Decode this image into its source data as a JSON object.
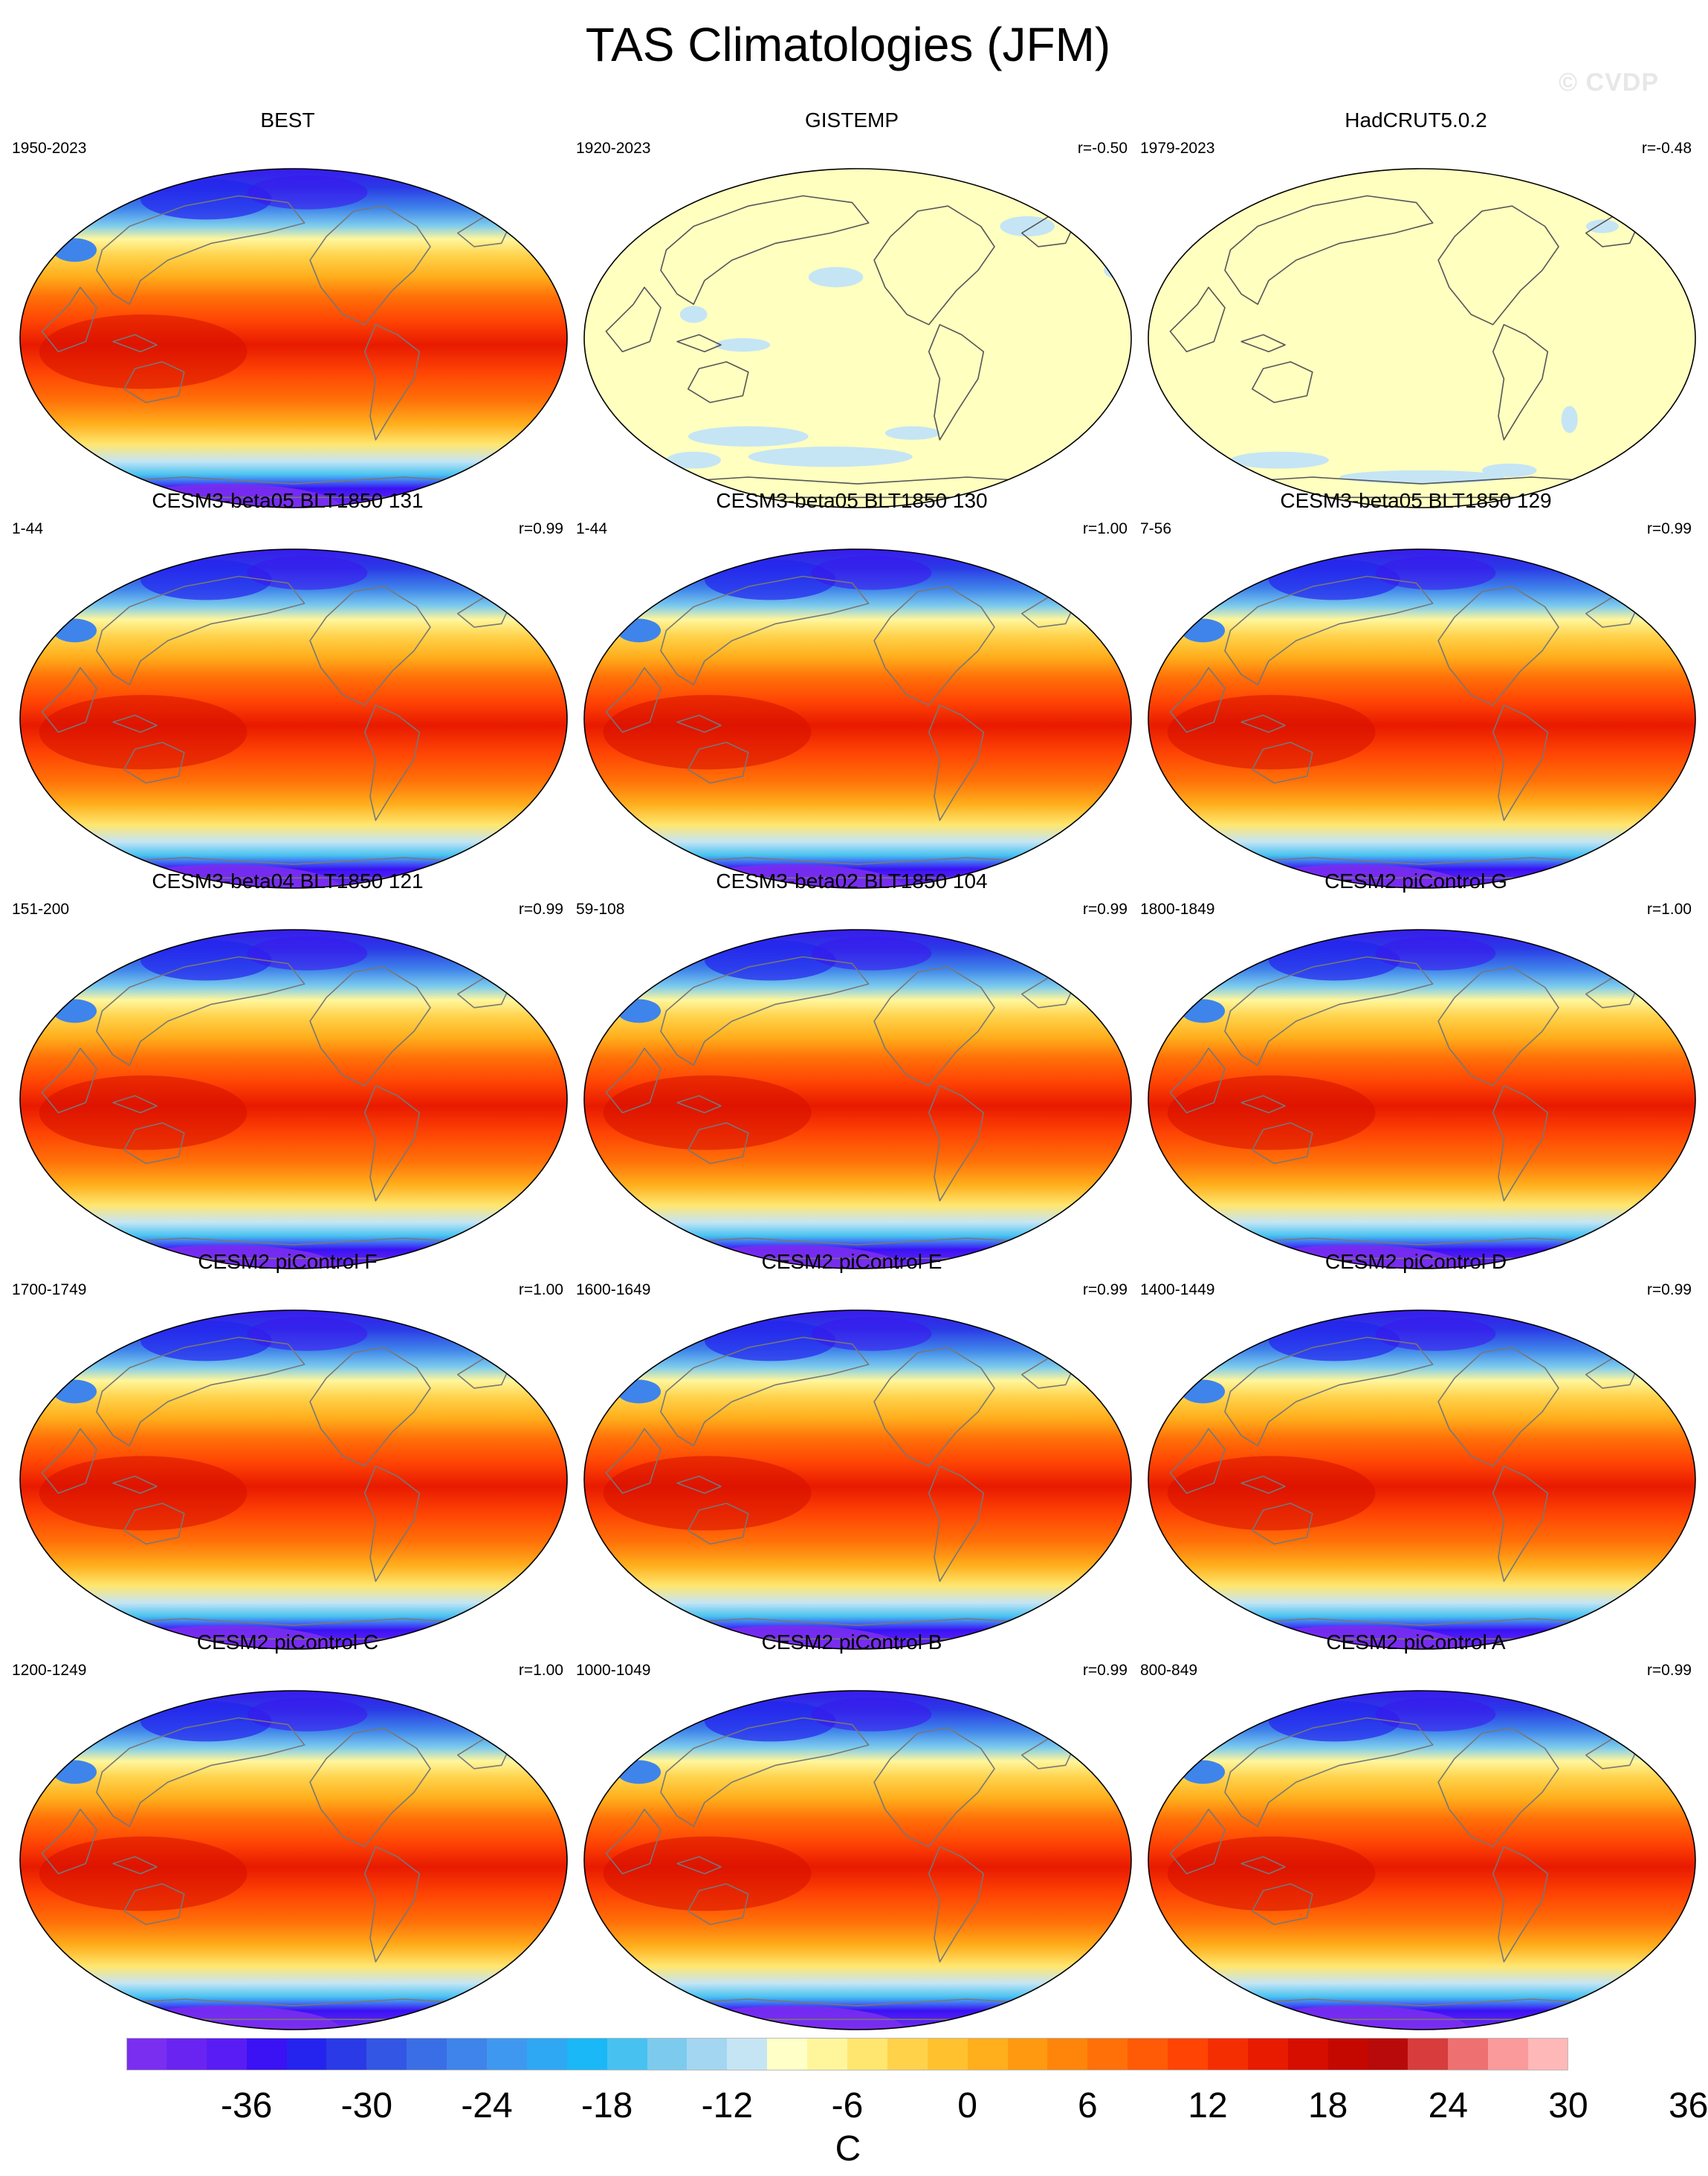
{
  "title": "TAS Climatologies (JFM)",
  "watermark": "© CVDP",
  "panels": [
    {
      "name": "BEST",
      "years": "1950-2023",
      "r": "",
      "style": "obs"
    },
    {
      "name": "GISTEMP",
      "years": "1920-2023",
      "r": "r=-0.50",
      "style": "diff"
    },
    {
      "name": "HadCRUT5.0.2",
      "years": "1979-2023",
      "r": "r=-0.48",
      "style": "diff"
    },
    {
      "name": "CESM3-beta05 BLT1850 131",
      "years": "1-44",
      "r": "r=0.99",
      "style": "model"
    },
    {
      "name": "CESM3-beta05 BLT1850 130",
      "years": "1-44",
      "r": "r=1.00",
      "style": "model"
    },
    {
      "name": "CESM3-beta05 BLT1850 129",
      "years": "7-56",
      "r": "r=0.99",
      "style": "model"
    },
    {
      "name": "CESM3-beta04 BLT1850 121",
      "years": "151-200",
      "r": "r=0.99",
      "style": "model"
    },
    {
      "name": "CESM3-beta02 BLT1850 104",
      "years": "59-108",
      "r": "r=0.99",
      "style": "model"
    },
    {
      "name": "CESM2 piControl G",
      "years": "1800-1849",
      "r": "r=1.00",
      "style": "model"
    },
    {
      "name": "CESM2 piControl F",
      "years": "1700-1749",
      "r": "r=1.00",
      "style": "model"
    },
    {
      "name": "CESM2 piControl E",
      "years": "1600-1649",
      "r": "r=0.99",
      "style": "model"
    },
    {
      "name": "CESM2 piControl D",
      "years": "1400-1449",
      "r": "r=0.99",
      "style": "model"
    },
    {
      "name": "CESM2 piControl C",
      "years": "1200-1249",
      "r": "r=1.00",
      "style": "model"
    },
    {
      "name": "CESM2 piControl B",
      "years": "1000-1049",
      "r": "r=0.99",
      "style": "model"
    },
    {
      "name": "CESM2 piControl A",
      "years": "800-849",
      "r": "r=0.99",
      "style": "model"
    }
  ],
  "colorbar": {
    "unit": "C",
    "tick_labels": [
      "-36",
      "-30",
      "-24",
      "-18",
      "-12",
      "-6",
      "0",
      "6",
      "12",
      "18",
      "24",
      "30",
      "36"
    ],
    "colors": [
      "#7a2ef0",
      "#6a24f2",
      "#5a1cf4",
      "#3a12f4",
      "#2424ee",
      "#2a3ae6",
      "#3356e4",
      "#3a6ee6",
      "#3f84ea",
      "#3f98ef",
      "#2fa8f4",
      "#1ab8f6",
      "#47c2f0",
      "#7ccbee",
      "#a3d6f0",
      "#c5e5f5",
      "#ffffc8",
      "#fff69c",
      "#ffe66e",
      "#ffd24a",
      "#ffc22e",
      "#ffae1c",
      "#ff9a10",
      "#ff850a",
      "#ff7008",
      "#ff5a06",
      "#ff4404",
      "#f52e02",
      "#e81a00",
      "#d60e00",
      "#c40800",
      "#b80a0a",
      "#d83c3c",
      "#ee7070",
      "#fa9a9a",
      "#ffb8b8"
    ]
  }
}
